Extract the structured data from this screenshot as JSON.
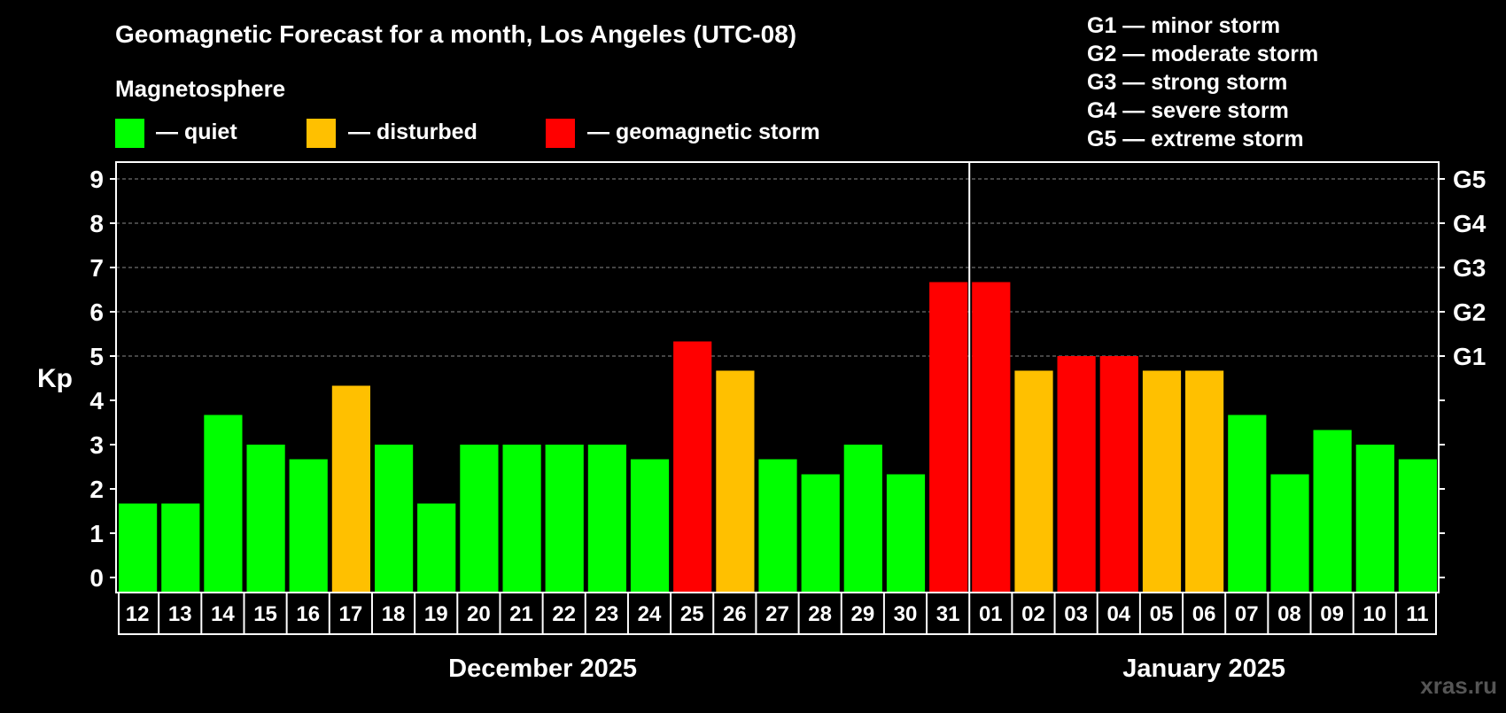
{
  "chart_data": {
    "type": "bar",
    "title": "Geomagnetic Forecast for a month, Los Angeles (UTC-08)",
    "subtitle": "Magnetosphere",
    "ylabel": "Kp",
    "ylim": [
      -0.3,
      9.3
    ],
    "y_ticks": [
      "0",
      "1",
      "2",
      "3",
      "4",
      "5",
      "6",
      "7",
      "8",
      "9"
    ],
    "right_axis_labels": [
      {
        "kp": 5,
        "label": "G1"
      },
      {
        "kp": 6,
        "label": "G2"
      },
      {
        "kp": 7,
        "label": "G3"
      },
      {
        "kp": 8,
        "label": "G4"
      },
      {
        "kp": 9,
        "label": "G5"
      }
    ],
    "legend": [
      {
        "label": "— quiet",
        "color": "#00ff00"
      },
      {
        "label": "— disturbed",
        "color": "#ffc000"
      },
      {
        "label": "— geomagnetic storm",
        "color": "#ff0000"
      }
    ],
    "storm_scale": [
      "G1 — minor storm",
      "G2 — moderate storm",
      "G3 — strong storm",
      "G4 — severe storm",
      "G5 — extreme storm"
    ],
    "months": [
      {
        "label": "December 2025",
        "first_index": 0,
        "last_index": 19
      },
      {
        "label": "January 2025",
        "first_index": 20,
        "last_index": 30
      }
    ],
    "categories": [
      "12",
      "13",
      "14",
      "15",
      "16",
      "17",
      "18",
      "19",
      "20",
      "21",
      "22",
      "23",
      "24",
      "25",
      "26",
      "27",
      "28",
      "29",
      "30",
      "31",
      "01",
      "02",
      "03",
      "04",
      "05",
      "06",
      "07",
      "08",
      "09",
      "10",
      "11"
    ],
    "values": [
      1.67,
      1.67,
      3.67,
      3.0,
      2.67,
      4.33,
      3.0,
      1.67,
      3.0,
      3.0,
      3.0,
      3.0,
      2.67,
      5.33,
      4.67,
      2.67,
      2.33,
      3.0,
      2.33,
      6.67,
      6.67,
      4.67,
      5.0,
      5.0,
      4.67,
      4.67,
      3.67,
      2.33,
      3.33,
      3.0,
      2.67
    ],
    "level": [
      "quiet",
      "quiet",
      "quiet",
      "quiet",
      "quiet",
      "disturbed",
      "quiet",
      "quiet",
      "quiet",
      "quiet",
      "quiet",
      "quiet",
      "quiet",
      "storm",
      "disturbed",
      "quiet",
      "quiet",
      "quiet",
      "quiet",
      "storm",
      "storm",
      "disturbed",
      "storm",
      "storm",
      "disturbed",
      "disturbed",
      "quiet",
      "quiet",
      "quiet",
      "quiet",
      "quiet"
    ],
    "colors": {
      "quiet": "#00ff00",
      "disturbed": "#ffc000",
      "storm": "#ff0000"
    },
    "grid": true
  },
  "watermark": "xras.ru"
}
